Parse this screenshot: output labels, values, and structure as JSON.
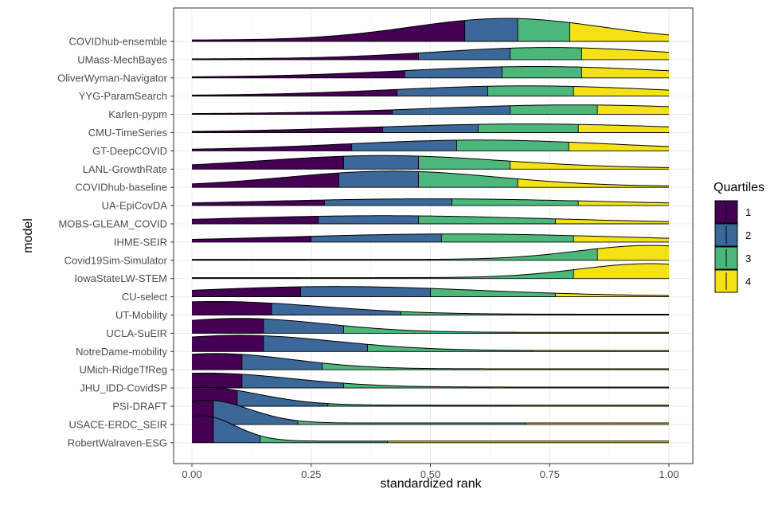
{
  "chart_data": {
    "type": "ridgeline",
    "title": "",
    "xlabel": "standardized rank",
    "ylabel": "model",
    "xlim": [
      0,
      1
    ],
    "x_ticks": [
      "0.00",
      "0.25",
      "0.50",
      "0.75",
      "1.00"
    ],
    "x_tick_values": [
      0,
      0.25,
      0.5,
      0.75,
      1.0
    ],
    "grid": true,
    "legend": {
      "title": "Quartiles",
      "position": "right",
      "entries": [
        "1",
        "2",
        "3",
        "4"
      ]
    },
    "colors": {
      "q1": "#440154",
      "q2": "#3B6898",
      "q3": "#4CB77A",
      "q4": "#F5E216"
    },
    "models": [
      {
        "name": "COVIDhub-ensemble",
        "quartiles": [
          0.572,
          0.683,
          0.792
        ],
        "peak": 0.85,
        "mode": 0.66,
        "spread": 0.2
      },
      {
        "name": "UMass-MechBayes",
        "quartiles": [
          0.475,
          0.667,
          0.817
        ],
        "peak": 0.45,
        "mode": 0.75,
        "spread": 0.24
      },
      {
        "name": "OliverWyman-Navigator",
        "quartiles": [
          0.446,
          0.65,
          0.817
        ],
        "peak": 0.42,
        "mode": 0.72,
        "spread": 0.28
      },
      {
        "name": "YYG-ParamSearch",
        "quartiles": [
          0.43,
          0.62,
          0.8
        ],
        "peak": 0.38,
        "mode": 0.7,
        "spread": 0.28
      },
      {
        "name": "Karlen-pypm",
        "quartiles": [
          0.42,
          0.667,
          0.85
        ],
        "peak": 0.35,
        "mode": 0.8,
        "spread": 0.3
      },
      {
        "name": "CMU-TimeSeries",
        "quartiles": [
          0.4,
          0.6,
          0.81
        ],
        "peak": 0.32,
        "mode": 0.7,
        "spread": 0.32
      },
      {
        "name": "GT-DeepCOVID",
        "quartiles": [
          0.335,
          0.555,
          0.79
        ],
        "peak": 0.4,
        "mode": 0.6,
        "spread": 0.28
      },
      {
        "name": "LANL-GrowthRate",
        "quartiles": [
          0.318,
          0.475,
          0.667
        ],
        "peak": 0.5,
        "mode": 0.4,
        "spread": 0.25
      },
      {
        "name": "COVIDhub-baseline",
        "quartiles": [
          0.308,
          0.475,
          0.683
        ],
        "peak": 0.6,
        "mode": 0.42,
        "spread": 0.22
      },
      {
        "name": "UA-EpiCovDA",
        "quartiles": [
          0.278,
          0.545,
          0.81
        ],
        "peak": 0.25,
        "mode": 0.5,
        "spread": 0.35
      },
      {
        "name": "MOBS-GLEAM_COVID",
        "quartiles": [
          0.265,
          0.475,
          0.762
        ],
        "peak": 0.3,
        "mode": 0.4,
        "spread": 0.35
      },
      {
        "name": "IHME-SEIR",
        "quartiles": [
          0.25,
          0.523,
          0.8
        ],
        "peak": 0.3,
        "mode": 0.55,
        "spread": 0.35
      },
      {
        "name": "Covid19Sim-Simulator",
        "quartiles": [
          0.238,
          0.5,
          0.85
        ],
        "peak": 0.55,
        "mode": 0.96,
        "spread": 0.15
      },
      {
        "name": "IowaStateLW-STEM",
        "quartiles": [
          0.228,
          0.45,
          0.8
        ],
        "peak": 0.55,
        "mode": 0.96,
        "spread": 0.15
      },
      {
        "name": "CU-select",
        "quartiles": [
          0.228,
          0.5,
          0.762
        ],
        "peak": 0.38,
        "mode": 0.3,
        "spread": 0.3
      },
      {
        "name": "UT-Mobility",
        "quartiles": [
          0.167,
          0.438,
          0.75
        ],
        "peak": 0.5,
        "mode": 0.05,
        "spread": 0.22
      },
      {
        "name": "UCLA-SuEIR",
        "quartiles": [
          0.15,
          0.318,
          0.683
        ],
        "peak": 0.55,
        "mode": 0.1,
        "spread": 0.18
      },
      {
        "name": "NotreDame-mobility",
        "quartiles": [
          0.15,
          0.368,
          0.715
        ],
        "peak": 0.6,
        "mode": 0.1,
        "spread": 0.2
      },
      {
        "name": "UMich-RidgeTfReg",
        "quartiles": [
          0.105,
          0.273,
          0.6
        ],
        "peak": 0.6,
        "mode": 0.05,
        "spread": 0.16
      },
      {
        "name": "JHU_IDD-CovidSP",
        "quartiles": [
          0.105,
          0.318,
          0.625
        ],
        "peak": 0.55,
        "mode": 0.03,
        "spread": 0.18
      },
      {
        "name": "PSI-DRAFT",
        "quartiles": [
          0.095,
          0.285,
          0.683
        ],
        "peak": 0.7,
        "mode": 0.02,
        "spread": 0.12
      },
      {
        "name": "USACE-ERDC_SEIR",
        "quartiles": [
          0.045,
          0.222,
          0.7
        ],
        "peak": 0.9,
        "mode": 0.03,
        "spread": 0.09
      },
      {
        "name": "RobertWalraven-ESG",
        "quartiles": [
          0.045,
          0.143,
          0.41
        ],
        "peak": 1.0,
        "mode": 0.02,
        "spread": 0.07
      }
    ]
  }
}
